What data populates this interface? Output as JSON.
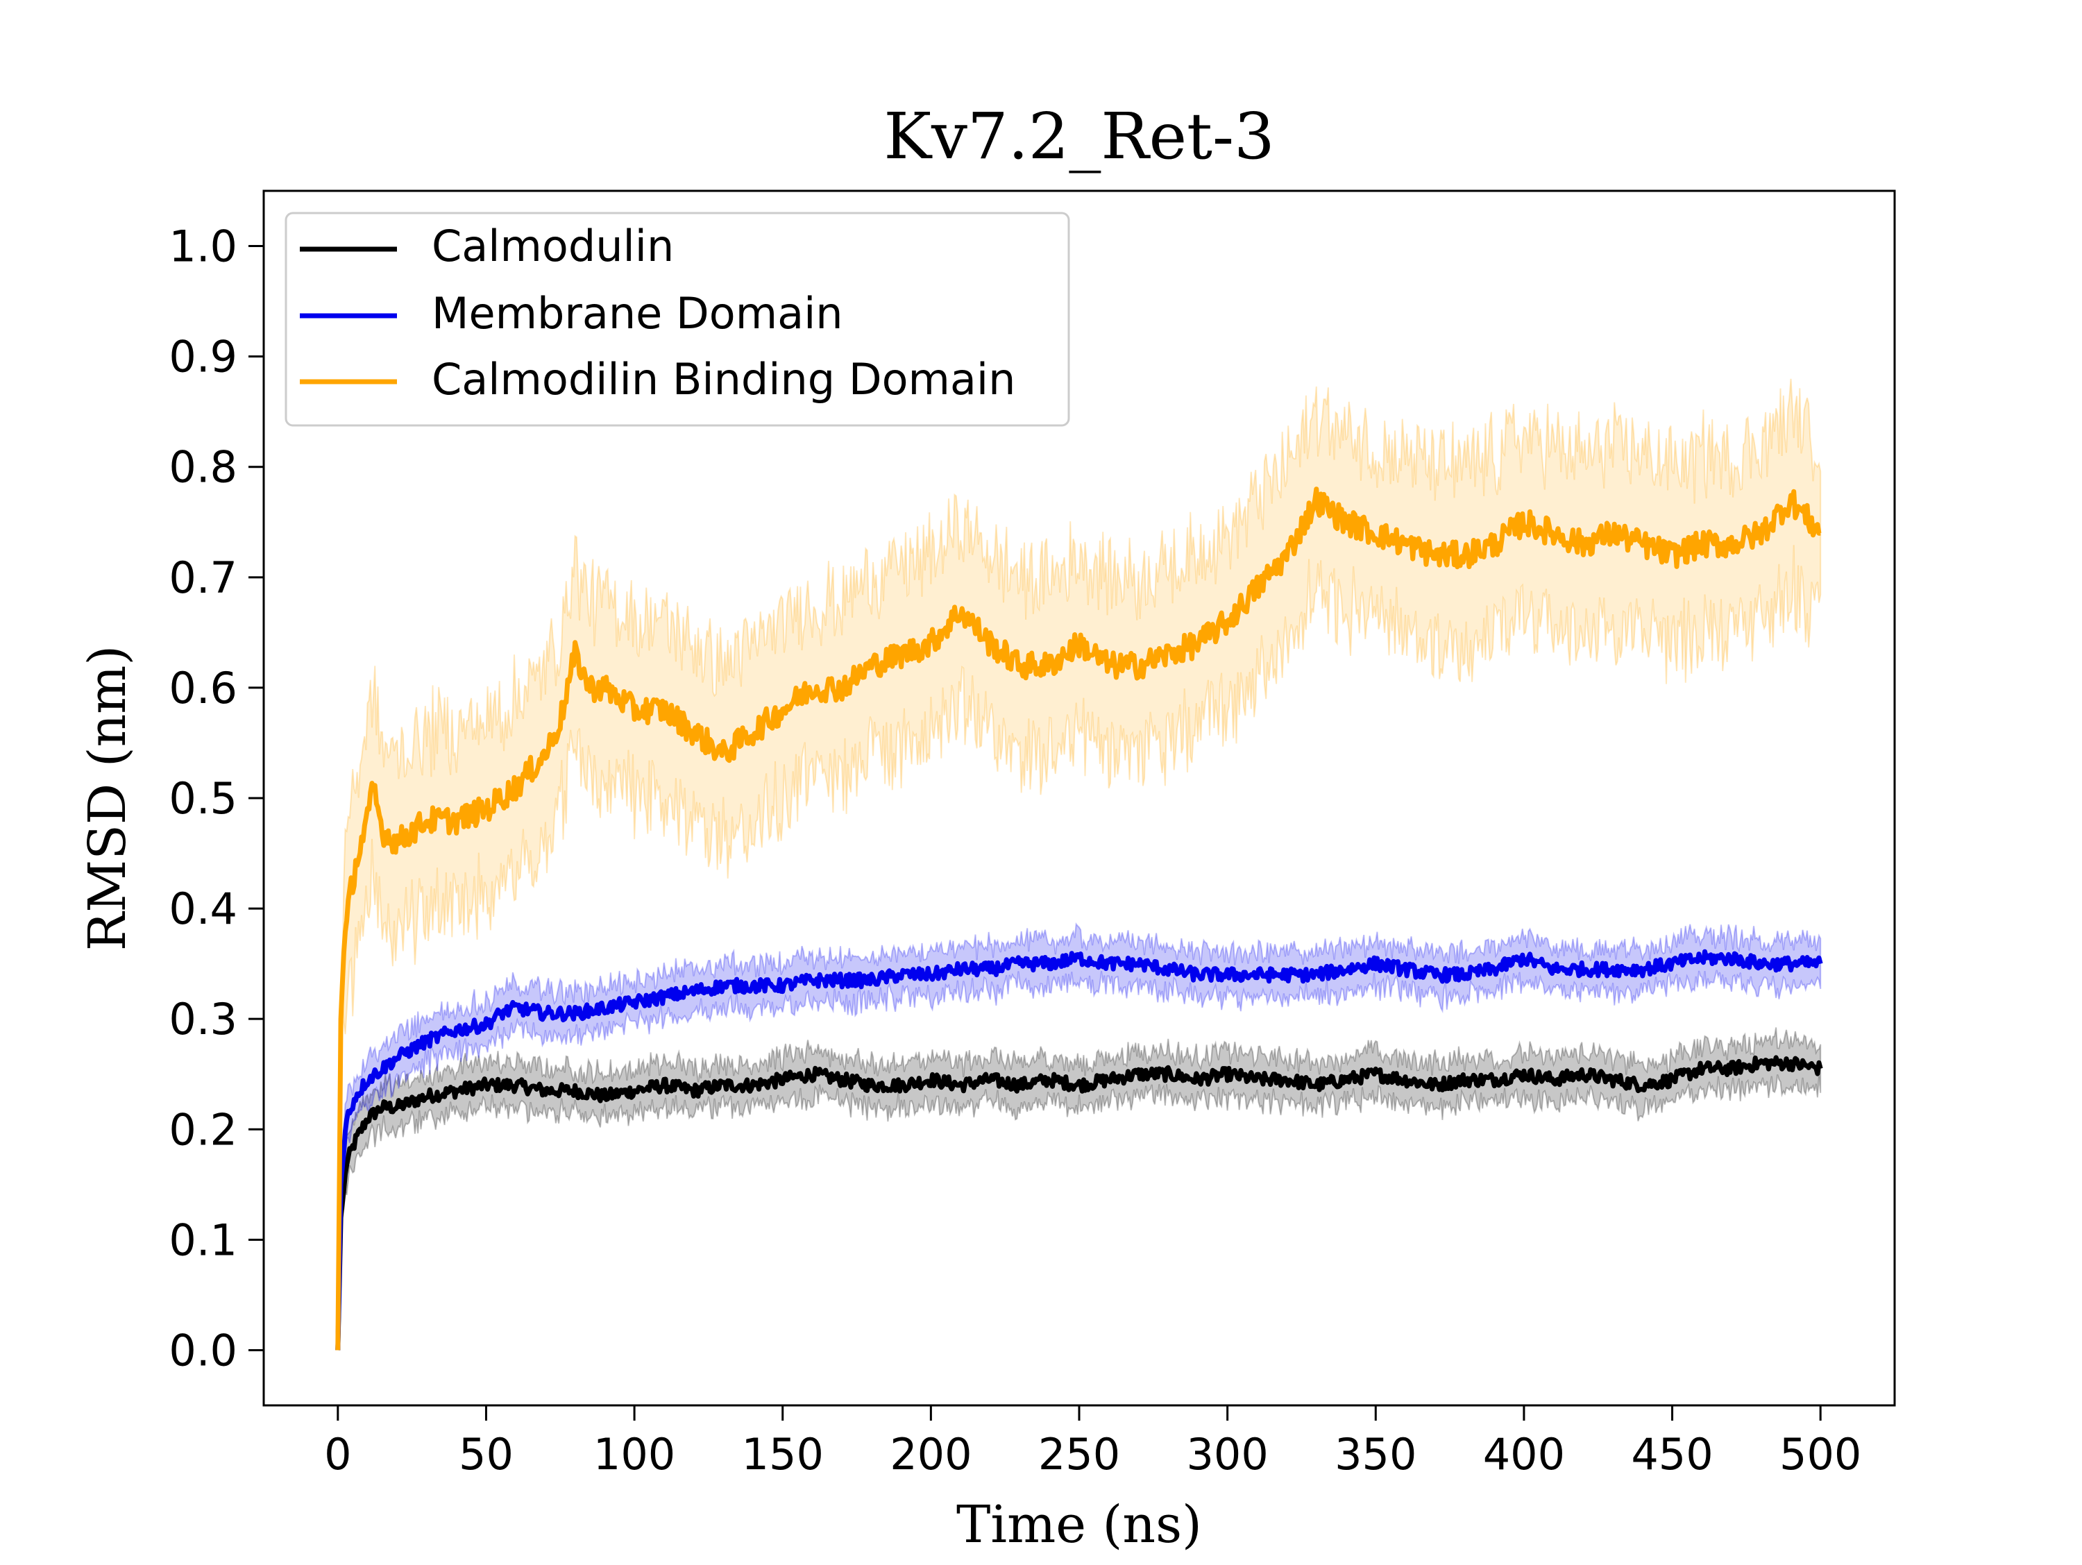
{
  "chart_data": {
    "type": "line",
    "title": "Kv7.2_Ret-3",
    "xlabel": "Time (ns)",
    "ylabel": "RMSD (nm)",
    "xlim": [
      -25,
      525
    ],
    "ylim": [
      -0.05,
      1.05
    ],
    "xticks": [
      0,
      50,
      100,
      150,
      200,
      250,
      300,
      350,
      400,
      450,
      500
    ],
    "yticks": [
      0.0,
      0.1,
      0.2,
      0.3,
      0.4,
      0.5,
      0.6,
      0.7,
      0.8,
      0.9,
      1.0
    ],
    "grid": false,
    "legend_position": "top-left",
    "shaded_band": true,
    "series": [
      {
        "name": "Calmodulin",
        "color": "#000000",
        "x": [
          0,
          1,
          3,
          6,
          10,
          15,
          20,
          30,
          40,
          50,
          60,
          70,
          80,
          90,
          100,
          110,
          120,
          130,
          140,
          150,
          160,
          170,
          180,
          190,
          200,
          210,
          220,
          230,
          240,
          250,
          260,
          270,
          280,
          290,
          300,
          310,
          320,
          330,
          340,
          350,
          360,
          370,
          380,
          390,
          400,
          410,
          420,
          430,
          440,
          450,
          460,
          470,
          480,
          490,
          500
        ],
        "y": [
          0.0,
          0.12,
          0.17,
          0.19,
          0.21,
          0.22,
          0.22,
          0.23,
          0.235,
          0.24,
          0.24,
          0.235,
          0.235,
          0.23,
          0.235,
          0.24,
          0.235,
          0.24,
          0.24,
          0.245,
          0.25,
          0.245,
          0.24,
          0.24,
          0.245,
          0.24,
          0.245,
          0.24,
          0.245,
          0.24,
          0.245,
          0.25,
          0.25,
          0.245,
          0.25,
          0.245,
          0.245,
          0.24,
          0.245,
          0.25,
          0.245,
          0.24,
          0.245,
          0.245,
          0.25,
          0.245,
          0.25,
          0.245,
          0.24,
          0.245,
          0.255,
          0.255,
          0.26,
          0.26,
          0.255
        ],
        "band": 0.02
      },
      {
        "name": "Membrane Domain",
        "color": "#0000ee",
        "x": [
          0,
          1,
          3,
          6,
          10,
          15,
          20,
          30,
          40,
          50,
          55,
          60,
          70,
          80,
          90,
          100,
          110,
          120,
          130,
          140,
          150,
          160,
          170,
          180,
          190,
          200,
          210,
          220,
          230,
          240,
          250,
          260,
          270,
          280,
          290,
          300,
          310,
          320,
          330,
          340,
          350,
          360,
          370,
          380,
          390,
          400,
          410,
          420,
          430,
          440,
          450,
          460,
          470,
          480,
          490,
          500
        ],
        "y": [
          0.0,
          0.15,
          0.21,
          0.23,
          0.245,
          0.255,
          0.265,
          0.28,
          0.29,
          0.295,
          0.305,
          0.31,
          0.305,
          0.305,
          0.31,
          0.315,
          0.32,
          0.325,
          0.33,
          0.33,
          0.33,
          0.335,
          0.335,
          0.335,
          0.34,
          0.34,
          0.345,
          0.345,
          0.35,
          0.35,
          0.355,
          0.35,
          0.35,
          0.345,
          0.34,
          0.34,
          0.34,
          0.34,
          0.34,
          0.345,
          0.35,
          0.345,
          0.34,
          0.34,
          0.345,
          0.355,
          0.345,
          0.345,
          0.345,
          0.345,
          0.35,
          0.355,
          0.355,
          0.35,
          0.35,
          0.35
        ],
        "band": 0.02
      },
      {
        "name": "Calmodilin Binding Domain",
        "color": "#ffa500",
        "x": [
          0,
          1,
          2,
          4,
          6,
          8,
          10,
          12,
          15,
          20,
          25,
          30,
          40,
          50,
          60,
          70,
          75,
          80,
          85,
          90,
          100,
          110,
          120,
          130,
          140,
          150,
          160,
          170,
          180,
          190,
          200,
          210,
          220,
          230,
          240,
          250,
          260,
          270,
          280,
          290,
          300,
          310,
          320,
          330,
          340,
          350,
          360,
          370,
          380,
          390,
          400,
          410,
          420,
          430,
          440,
          450,
          460,
          470,
          480,
          490,
          500
        ],
        "y": [
          0.0,
          0.3,
          0.36,
          0.41,
          0.44,
          0.46,
          0.48,
          0.51,
          0.47,
          0.46,
          0.47,
          0.48,
          0.48,
          0.49,
          0.51,
          0.54,
          0.57,
          0.63,
          0.6,
          0.6,
          0.58,
          0.58,
          0.56,
          0.54,
          0.56,
          0.58,
          0.6,
          0.6,
          0.62,
          0.63,
          0.64,
          0.67,
          0.64,
          0.62,
          0.62,
          0.64,
          0.62,
          0.62,
          0.63,
          0.64,
          0.66,
          0.69,
          0.72,
          0.77,
          0.75,
          0.74,
          0.73,
          0.72,
          0.72,
          0.73,
          0.75,
          0.74,
          0.73,
          0.74,
          0.73,
          0.72,
          0.73,
          0.73,
          0.74,
          0.77,
          0.74
        ],
        "band": 0.08
      }
    ]
  }
}
